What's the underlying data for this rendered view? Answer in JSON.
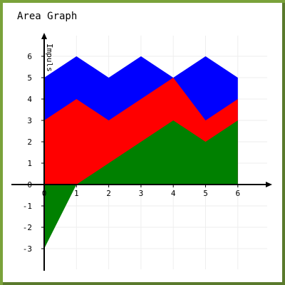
{
  "chart_data": {
    "type": "area",
    "title": "Area Graph",
    "xlabel": "",
    "ylabel": "Impuls",
    "xlim": [
      0,
      6
    ],
    "ylim": [
      -3,
      6
    ],
    "x_ticks": [
      "0",
      "1",
      "2",
      "3",
      "4",
      "5",
      "6"
    ],
    "y_ticks": [
      "-3",
      "-2",
      "-1",
      "0",
      "1",
      "2",
      "3",
      "4",
      "5",
      "6"
    ],
    "grid": true,
    "legend": "none",
    "x": [
      0,
      1,
      2,
      3,
      4,
      5,
      6
    ],
    "series": [
      {
        "color": "#0000ff",
        "values": [
          5,
          6,
          5,
          6,
          5,
          6,
          5
        ]
      },
      {
        "color": "#ff0000",
        "values": [
          3,
          4,
          3,
          4,
          5,
          3,
          4
        ]
      },
      {
        "color": "#008000",
        "values": [
          -3,
          0,
          1,
          2,
          3,
          2,
          3
        ]
      }
    ]
  }
}
